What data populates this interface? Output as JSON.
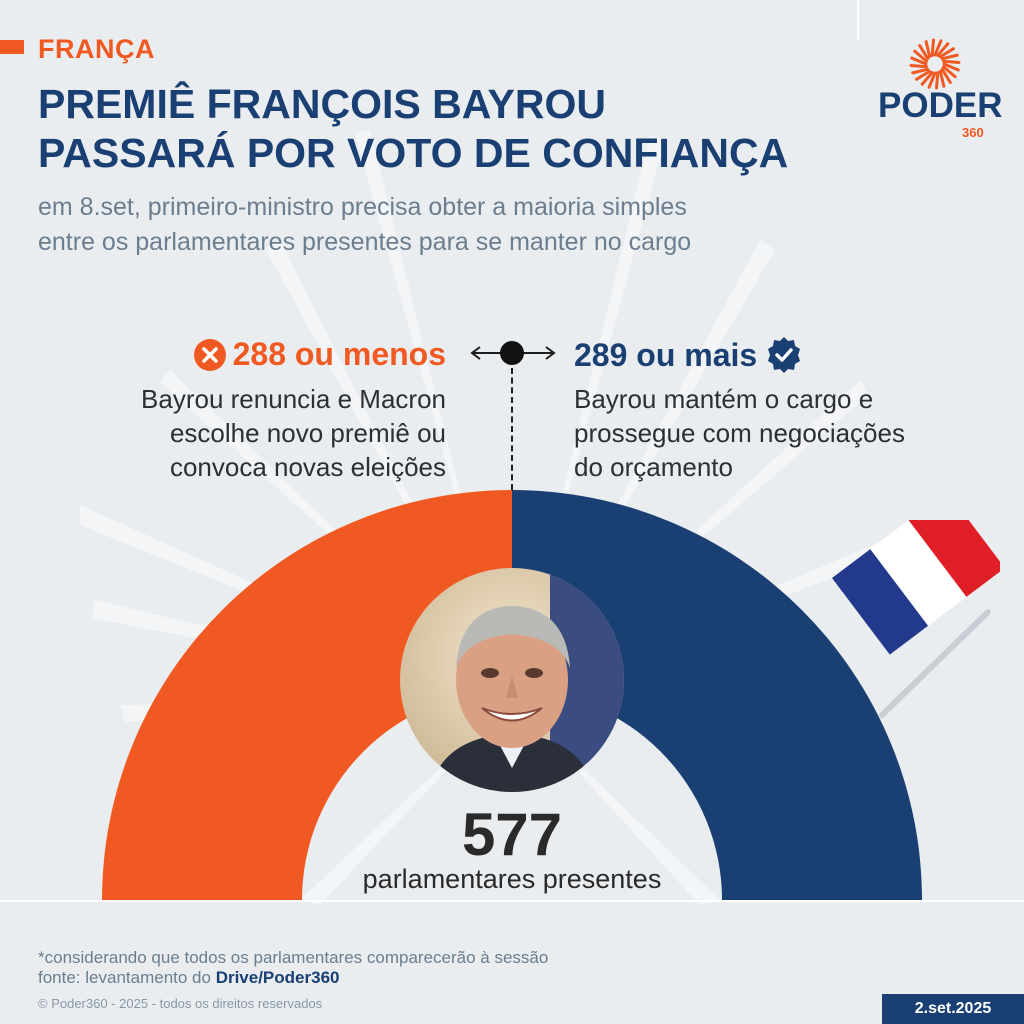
{
  "header": {
    "kicker": "FRANÇA",
    "title_line1": "PREMIÊ FRANÇOIS BAYROU",
    "title_line2": "PASSARÁ POR VOTO DE CONFIANÇA",
    "subtitle_line1": "em 8.set, primeiro-ministro precisa obter a maioria simples",
    "subtitle_line2": "entre os parlamentares presentes para se manter no cargo"
  },
  "logo": {
    "word": "PODER",
    "number": "360"
  },
  "outcomes": {
    "fail": {
      "icon": "x-circle-icon",
      "label": "288 ou menos",
      "line1": "Bayrou renuncia e Macron",
      "line2": "escolhe novo premiê ou",
      "line3": "convoca novas eleições",
      "color": "#f05a22"
    },
    "pass": {
      "icon": "check-circle-icon",
      "label": "289 ou mais",
      "line1": "Bayrou mantém o cargo e",
      "line2": "prossegue com negociações",
      "line3": "do orçamento",
      "color": "#1a3f73"
    }
  },
  "chamber": {
    "total": "577",
    "total_label": "parlamentares presentes",
    "seats_fail": 288,
    "seats_pass": 289
  },
  "footer": {
    "note": "*considerando que todos os parlamentares comparecerão à sessão",
    "source_prefix": "fonte: levantamento do ",
    "source_name": "Drive/Poder360",
    "copyright": "© Poder360 - 2025 - todos os direitos reservados",
    "date": "2.set.2025"
  }
}
